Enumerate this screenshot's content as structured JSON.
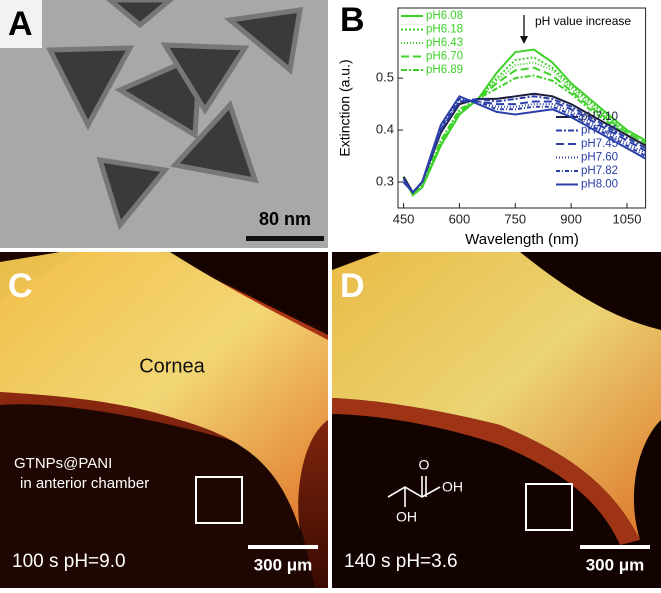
{
  "panels": {
    "a": {
      "label": "A",
      "scale_bar": "80 nm"
    },
    "c": {
      "label": "C",
      "region": "Cornea",
      "note_line1": "GTNPs@PANI",
      "note_line2": "in anterior chamber",
      "caption": "100 s pH=9.0",
      "scale_bar": "300 μm"
    },
    "d": {
      "label": "D",
      "caption": "140 s pH=3.6",
      "scale_bar": "300 μm",
      "molecule_o": "O",
      "molecule_oh1": "OH",
      "molecule_oh2": "OH"
    }
  },
  "chart_data": {
    "type": "line",
    "panel_label": "B",
    "annotation": "pH value increase",
    "x_label": "Wavelength (nm)",
    "y_label": "Extinction (a.u.)",
    "x": [
      450,
      475,
      500,
      550,
      600,
      650,
      700,
      750,
      800,
      850,
      900,
      950,
      1000,
      1050,
      1100
    ],
    "xlim": [
      435,
      1100
    ],
    "xticks": [
      450,
      600,
      750,
      900,
      1050
    ],
    "ylim": [
      0.25,
      0.635
    ],
    "yticks": [
      0.3,
      0.4,
      0.5
    ],
    "series": [
      {
        "name": "pH6.08",
        "color": "#3fd12a",
        "dash": "",
        "values": [
          0.31,
          0.275,
          0.29,
          0.37,
          0.43,
          0.46,
          0.51,
          0.55,
          0.555,
          0.53,
          0.49,
          0.46,
          0.43,
          0.4,
          0.38
        ]
      },
      {
        "name": "pH6.18",
        "color": "#3fd12a",
        "dash": "2 2",
        "values": [
          0.31,
          0.275,
          0.29,
          0.37,
          0.43,
          0.46,
          0.5,
          0.535,
          0.54,
          0.52,
          0.485,
          0.455,
          0.425,
          0.4,
          0.38
        ]
      },
      {
        "name": "pH6.43",
        "color": "#3fd12a",
        "dash": "1 2",
        "values": [
          0.31,
          0.275,
          0.29,
          0.375,
          0.435,
          0.46,
          0.495,
          0.525,
          0.53,
          0.515,
          0.48,
          0.45,
          0.42,
          0.395,
          0.375
        ]
      },
      {
        "name": "pH6.70",
        "color": "#3fd12a",
        "dash": "8 4",
        "values": [
          0.31,
          0.275,
          0.29,
          0.375,
          0.435,
          0.46,
          0.49,
          0.515,
          0.52,
          0.505,
          0.475,
          0.445,
          0.42,
          0.395,
          0.375
        ]
      },
      {
        "name": "pH6.89",
        "color": "#3fd12a",
        "dash": "6 2 2 2",
        "values": [
          0.31,
          0.275,
          0.295,
          0.38,
          0.44,
          0.46,
          0.48,
          0.5,
          0.505,
          0.495,
          0.47,
          0.44,
          0.415,
          0.39,
          0.37
        ]
      },
      {
        "name": "pH7.10",
        "color": "#1c1c3c",
        "dash": "",
        "values": [
          0.31,
          0.28,
          0.3,
          0.395,
          0.45,
          0.46,
          0.46,
          0.465,
          0.47,
          0.465,
          0.45,
          0.43,
          0.41,
          0.39,
          0.37
        ]
      },
      {
        "name": "pH7.21",
        "color": "#2b3fa8",
        "dash": "6 2 2 2",
        "values": [
          0.305,
          0.28,
          0.3,
          0.4,
          0.455,
          0.46,
          0.455,
          0.46,
          0.465,
          0.46,
          0.445,
          0.425,
          0.405,
          0.385,
          0.365
        ]
      },
      {
        "name": "pH7.45",
        "color": "#2b3fa8",
        "dash": "8 4",
        "values": [
          0.305,
          0.28,
          0.3,
          0.4,
          0.455,
          0.455,
          0.45,
          0.45,
          0.455,
          0.455,
          0.44,
          0.42,
          0.4,
          0.38,
          0.36
        ]
      },
      {
        "name": "pH7.60",
        "color": "#2b3fa8",
        "dash": "1 2",
        "values": [
          0.3,
          0.28,
          0.3,
          0.405,
          0.46,
          0.455,
          0.445,
          0.445,
          0.45,
          0.45,
          0.435,
          0.415,
          0.395,
          0.375,
          0.355
        ]
      },
      {
        "name": "pH7.82",
        "color": "#2b3fa8",
        "dash": "4 2 1 2",
        "values": [
          0.3,
          0.28,
          0.3,
          0.405,
          0.46,
          0.455,
          0.44,
          0.44,
          0.445,
          0.445,
          0.43,
          0.41,
          0.39,
          0.37,
          0.35
        ]
      },
      {
        "name": "pH8.00",
        "color": "#2b3fa8",
        "dash": "",
        "values": [
          0.3,
          0.28,
          0.3,
          0.41,
          0.465,
          0.45,
          0.435,
          0.43,
          0.435,
          0.44,
          0.425,
          0.405,
          0.385,
          0.365,
          0.345
        ]
      }
    ]
  }
}
